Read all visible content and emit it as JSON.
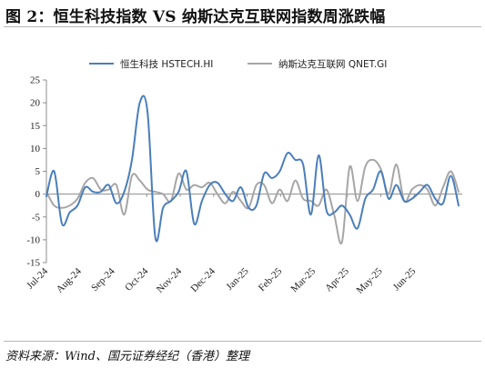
{
  "figure": {
    "title": "图 2：恒生科技指数 VS 纳斯达克互联网指数周涨跌幅",
    "source": "资料来源：Wind、国元证券经纪（香港）整理"
  },
  "chart_data": {
    "type": "line",
    "title": "",
    "xlabel": "",
    "ylabel": "",
    "ylim": [
      -15,
      25
    ],
    "yticks": [
      25,
      20,
      15,
      10,
      5,
      0,
      -5,
      -10,
      -15
    ],
    "xtick_labels": [
      "Jul-24",
      "Aug-24",
      "Sep-24",
      "Oct-24",
      "Nov-24",
      "Dec-24",
      "Jan-25",
      "Feb-25",
      "Mar-25",
      "Apr-25",
      "May-25",
      "Jun-25"
    ],
    "x_period": "weekly, Jul-24 to Jul-25",
    "grid": false,
    "legend_position": "top",
    "series": [
      {
        "name": "恒生科技 HSTECH.HI",
        "color": "#4a7ebb",
        "values": [
          -0.5,
          5.0,
          -6.5,
          -4.0,
          -2.5,
          1.5,
          0.5,
          0.5,
          2.0,
          -2.0,
          0.5,
          7.5,
          20.0,
          18.0,
          -9.5,
          -3.0,
          -1.5,
          0.5,
          5.0,
          -6.5,
          -1.5,
          2.0,
          2.5,
          0.0,
          -1.5,
          1.5,
          -3.0,
          -2.5,
          4.5,
          3.5,
          5.0,
          9.0,
          7.5,
          6.5,
          -4.5,
          8.5,
          -3.5,
          -4.0,
          -2.5,
          -4.5,
          -7.5,
          -1.0,
          1.0,
          5.0,
          -1.0,
          2.0,
          -1.5,
          -1.0,
          0.5,
          2.0,
          -1.0,
          -2.0,
          4.0,
          -2.5
        ]
      },
      {
        "name": "纳斯达克互联网 QNET.GI",
        "color": "#a6a6a6",
        "values": [
          0.5,
          -2.5,
          -3.0,
          -2.5,
          -1.0,
          2.5,
          3.5,
          1.0,
          1.0,
          2.0,
          -4.5,
          4.0,
          3.0,
          1.0,
          0.5,
          0.0,
          -1.5,
          4.5,
          1.0,
          2.0,
          1.5,
          2.5,
          0.0,
          -2.0,
          0.5,
          -1.5,
          -3.0,
          2.0,
          2.0,
          -2.0,
          1.0,
          -1.5,
          3.0,
          -1.0,
          -1.5,
          -2.5,
          1.0,
          -4.5,
          -10.5,
          6.0,
          -1.5,
          6.0,
          7.5,
          5.5,
          0.0,
          6.5,
          -1.5,
          1.0,
          2.0,
          1.0,
          -2.5,
          1.5,
          5.0,
          0.5
        ]
      }
    ]
  }
}
